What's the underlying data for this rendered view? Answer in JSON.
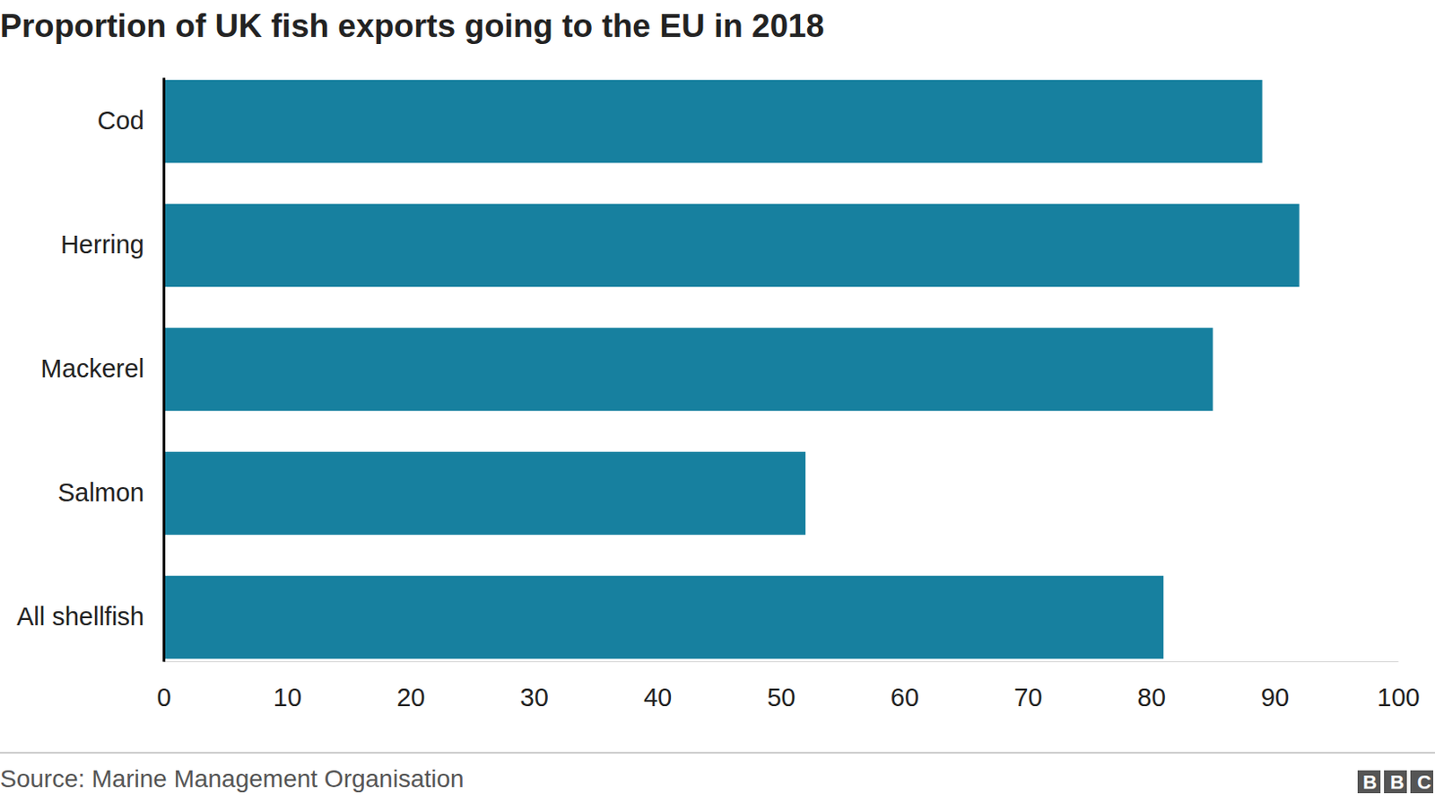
{
  "chart_data": {
    "type": "bar",
    "orientation": "horizontal",
    "title": "Proportion of UK fish exports going to the EU in 2018",
    "categories": [
      "Cod",
      "Herring",
      "Mackerel",
      "Salmon",
      "All shellfish"
    ],
    "values": [
      89,
      92,
      85,
      52,
      81
    ],
    "color": "#17809f",
    "xlim": [
      0,
      100
    ],
    "xticks": [
      0,
      10,
      20,
      30,
      40,
      50,
      60,
      70,
      80,
      90,
      100
    ],
    "grid": false,
    "source": "Source: Marine Management Organisation",
    "credit": "BBC"
  }
}
